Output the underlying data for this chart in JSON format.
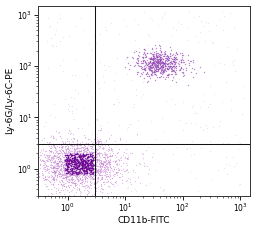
{
  "xlabel": "CD11b-FITC",
  "ylabel": "Ly-6G/Ly-6C-PE",
  "xlim": [
    0.3,
    1500
  ],
  "ylim": [
    0.3,
    1500
  ],
  "background_color": "#ffffff",
  "dot_color_light": "#c080d0",
  "dot_color_mid": "#9040b0",
  "dot_color_dense": "#6a0090",
  "quadrant_line_x": 3.0,
  "quadrant_line_y": 3.0,
  "cluster1_x_log_mean": 0.2,
  "cluster1_x_log_std": 0.38,
  "cluster1_y_log_mean": 0.08,
  "cluster1_y_log_std": 0.25,
  "cluster1_n": 2000,
  "cluster3_x_log_mean": 1.6,
  "cluster3_x_log_std": 0.22,
  "cluster3_y_log_mean": 2.05,
  "cluster3_y_log_std": 0.13,
  "cluster3_n": 600,
  "scatter_n": 300,
  "font_size_label": 6.5,
  "font_size_tick": 5.5,
  "line_color": "#111111",
  "line_width": 0.75
}
